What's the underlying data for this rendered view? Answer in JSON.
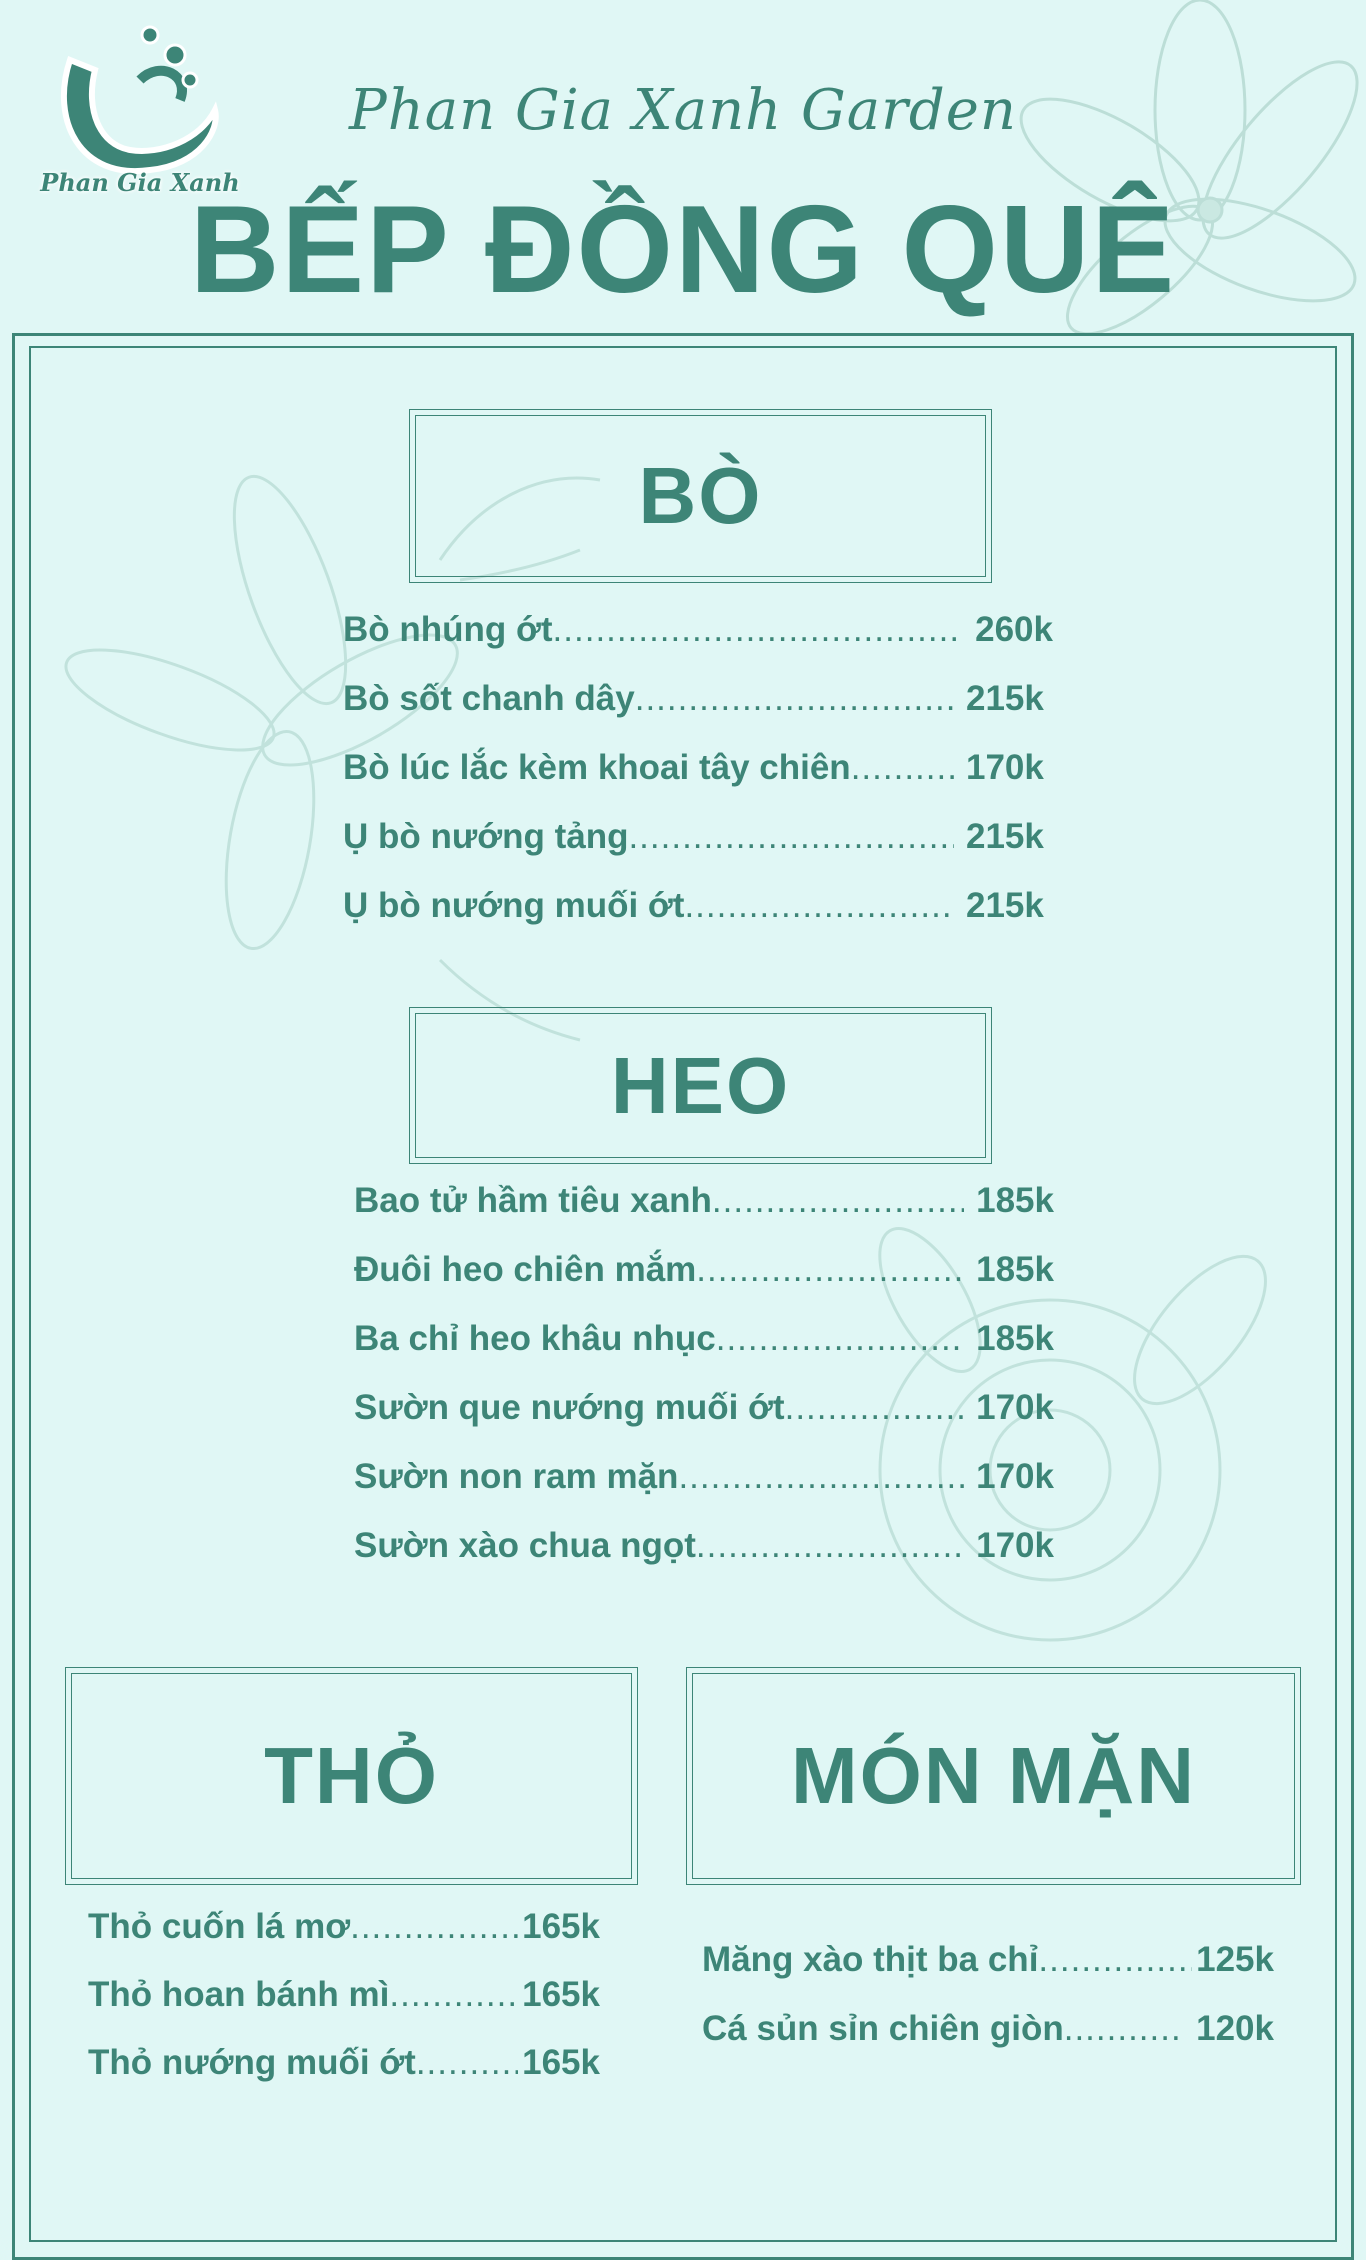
{
  "brand": {
    "logo_text": "Phan Gia Xanh",
    "subtitle": "Phan Gia Xanh Garden",
    "title": "BẾP ĐỒNG QUÊ"
  },
  "colors": {
    "background": "#e0f7f5",
    "accent": "#3d8577",
    "flower": "#b9dcd4"
  },
  "sections": [
    {
      "heading": "BÒ",
      "items": [
        {
          "name": "Bò nhúng ớt",
          "price": "260k"
        },
        {
          "name": "Bò sốt chanh dây",
          "price": "215k"
        },
        {
          "name": "Bò lúc lắc kèm khoai tây chiên",
          "price": "170k"
        },
        {
          "name": "Ụ bò nướng tảng",
          "price": "215k"
        },
        {
          "name": "Ụ bò nướng muối ớt",
          "price": "215k"
        }
      ]
    },
    {
      "heading": "HEO",
      "items": [
        {
          "name": "Bao tử hầm tiêu xanh",
          "price": "185k"
        },
        {
          "name": "Đuôi heo chiên mắm",
          "price": "185k"
        },
        {
          "name": "Ba chỉ heo khâu nhục",
          "price": "185k"
        },
        {
          "name": "Sườn que nướng muối ớt",
          "price": "170k"
        },
        {
          "name": "Sườn non ram mặn",
          "price": "170k"
        },
        {
          "name": "Sườn xào chua ngọt",
          "price": "170k"
        }
      ]
    },
    {
      "heading": "THỎ",
      "items": [
        {
          "name": "Thỏ cuốn lá mơ",
          "price": "165k"
        },
        {
          "name": "Thỏ hoan bánh mì",
          "price": "165k"
        },
        {
          "name": "Thỏ nướng muối ớt",
          "price": "165k"
        }
      ]
    },
    {
      "heading": "MÓN MẶN",
      "items": [
        {
          "name": "Măng xào thịt ba chỉ",
          "price": "125k"
        },
        {
          "name": "Cá sủn sỉn chiên giòn",
          "price": "120k"
        }
      ]
    }
  ]
}
